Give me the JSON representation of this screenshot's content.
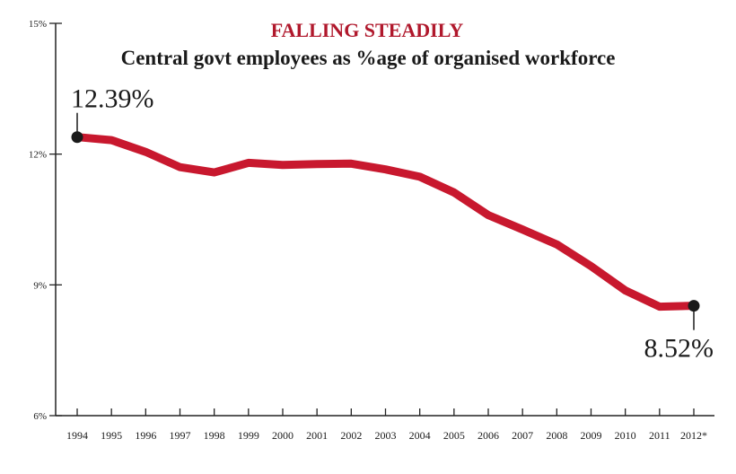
{
  "chart_data": {
    "type": "line",
    "title": "FALLING STEADILY",
    "subtitle": "Central govt employees as %age of organised workforce",
    "xlabel": "",
    "ylabel": "",
    "ylim": [
      6,
      15
    ],
    "y_ticks": [
      6,
      9,
      12,
      15
    ],
    "y_tick_labels": [
      "6%",
      "9%",
      "12%",
      "15%"
    ],
    "categories": [
      "1994",
      "1995",
      "1996",
      "1997",
      "1998",
      "1999",
      "2000",
      "2001",
      "2002",
      "2003",
      "2004",
      "2005",
      "2006",
      "2007",
      "2008",
      "2009",
      "2010",
      "2011",
      "2012*"
    ],
    "series": [
      {
        "values": [
          12.39,
          12.32,
          12.05,
          11.7,
          11.58,
          11.8,
          11.75,
          11.77,
          11.78,
          11.65,
          11.48,
          11.12,
          10.6,
          10.27,
          9.93,
          9.43,
          8.87,
          8.5,
          8.52
        ]
      }
    ],
    "annotations": [
      {
        "text": "12.39%",
        "category": "1994",
        "value": 12.39
      },
      {
        "text": "8.52%",
        "category": "2012*",
        "value": 8.52
      }
    ],
    "grid": false,
    "colors": {
      "line": "#c8182e",
      "title": "#b0182c",
      "text": "#1a1a1a",
      "marker": "#1a1a1a"
    }
  }
}
